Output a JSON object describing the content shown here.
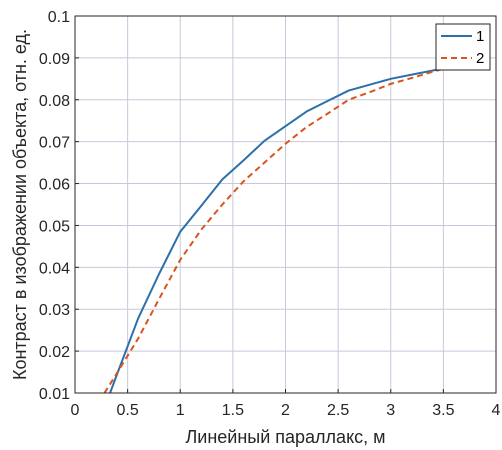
{
  "chart_data": {
    "type": "line",
    "xlabel": "Линейный параллакс, м",
    "ylabel": "Контраст в изображении объекта, отн. ед.",
    "xlim": [
      0,
      4
    ],
    "ylim": [
      0.01,
      0.1
    ],
    "xticks": [
      0,
      0.5,
      1,
      1.5,
      2,
      2.5,
      3,
      3.5,
      4
    ],
    "xtick_labels": [
      "0",
      "0.5",
      "1",
      "1.5",
      "2",
      "2.5",
      "3",
      "3.5",
      "4"
    ],
    "yticks": [
      0.01,
      0.02,
      0.03,
      0.04,
      0.05,
      0.06,
      0.07,
      0.08,
      0.09,
      0.1
    ],
    "ytick_labels": [
      "0.01",
      "0.02",
      "0.03",
      "0.04",
      "0.05",
      "0.06",
      "0.07",
      "0.08",
      "0.09",
      "0.1"
    ],
    "grid": true,
    "legend_position": "top-right",
    "series": [
      {
        "name": "1",
        "color": "#2c6faa",
        "style": "solid",
        "x": [
          0.33,
          0.4,
          0.6,
          0.8,
          1.0,
          1.2,
          1.4,
          1.6,
          1.8,
          2.0,
          2.2,
          2.4,
          2.6,
          2.8,
          3.0,
          3.2,
          3.4,
          3.6
        ],
        "y": [
          0.0098,
          0.0145,
          0.0278,
          0.0385,
          0.0485,
          0.0547,
          0.061,
          0.0655,
          0.0702,
          0.0737,
          0.0772,
          0.0797,
          0.0822,
          0.0836,
          0.085,
          0.086,
          0.087,
          0.088
        ]
      },
      {
        "name": "2",
        "color": "#d9541e",
        "style": "dashed",
        "x": [
          0.28,
          0.4,
          0.6,
          0.8,
          1.0,
          1.2,
          1.4,
          1.6,
          1.8,
          2.0,
          2.2,
          2.4,
          2.6,
          2.8,
          3.0,
          3.2,
          3.4,
          3.6
        ],
        "y": [
          0.01,
          0.0148,
          0.023,
          0.0325,
          0.0418,
          0.049,
          0.055,
          0.0605,
          0.065,
          0.0695,
          0.0735,
          0.0767,
          0.08,
          0.0818,
          0.0838,
          0.0852,
          0.0867,
          0.088
        ]
      }
    ]
  }
}
